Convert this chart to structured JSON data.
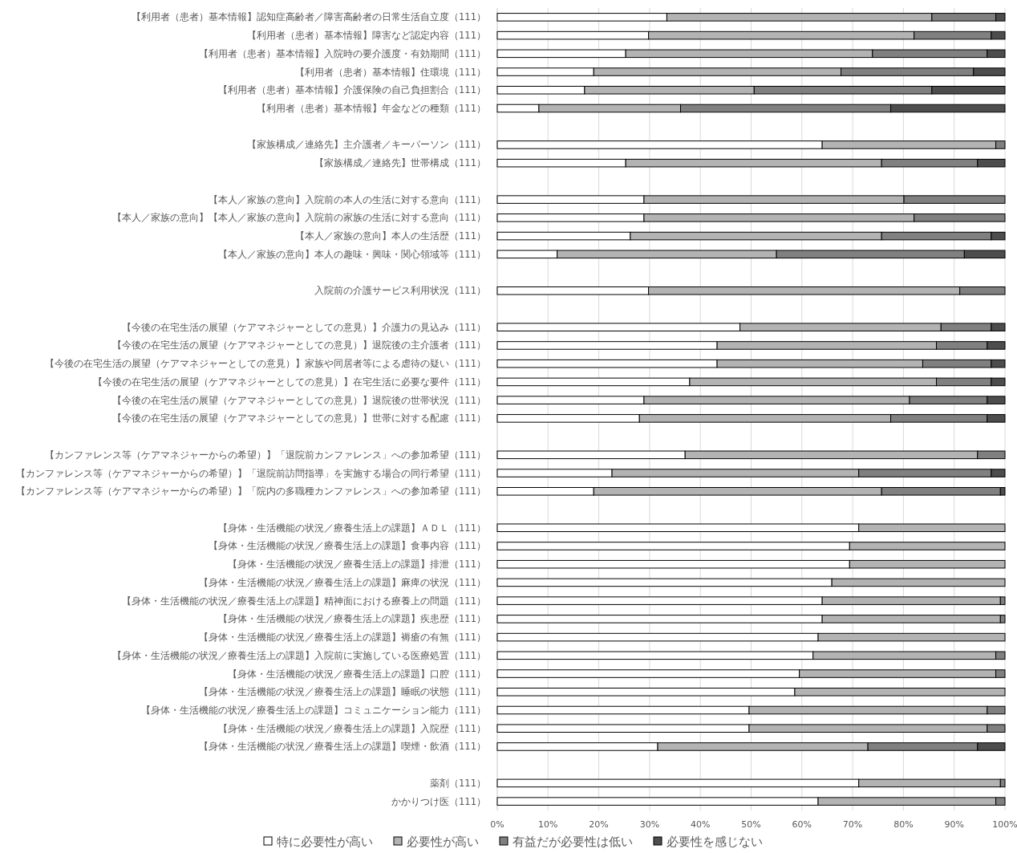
{
  "chart_data": {
    "type": "bar",
    "orientation": "horizontal",
    "stacked": true,
    "grid": "x",
    "legend": "bottom",
    "xlim": [
      0,
      100
    ],
    "xticks": [
      {
        "value": 0,
        "label": "0%"
      },
      {
        "value": 10,
        "label": "10%"
      },
      {
        "value": 20,
        "label": "20%"
      },
      {
        "value": 30,
        "label": "30%"
      },
      {
        "value": 40,
        "label": "40%"
      },
      {
        "value": 50,
        "label": "50%"
      },
      {
        "value": 60,
        "label": "60%"
      },
      {
        "value": 70,
        "label": "70%"
      },
      {
        "value": 80,
        "label": "80%"
      },
      {
        "value": 90,
        "label": "90%"
      },
      {
        "value": 100,
        "label": "100%"
      }
    ],
    "categories": [
      "【利用者（患者）基本情報】認知症高齢者／障害高齢者の日常生活自立度（111）",
      "【利用者（患者）基本情報】障害など認定内容（111）",
      "【利用者（患者）基本情報】入院時の要介護度・有効期間（111）",
      "【利用者（患者）基本情報】住環境（111）",
      "【利用者（患者）基本情報】介護保険の自己負担割合（111）",
      "【利用者（患者）基本情報】年金などの種類（111）",
      null,
      "【家族構成／連絡先】主介護者／キーパーソン（111）",
      "【家族構成／連絡先】世帯構成（111）",
      null,
      "【本人／家族の意向】入院前の本人の生活に対する意向（111）",
      "【本人／家族の意向】【本人／家族の意向】入院前の家族の生活に対する意向（111）",
      "【本人／家族の意向】本人の生活歴（111）",
      "【本人／家族の意向】本人の趣味・興味・関心領域等（111）",
      null,
      "入院前の介護サービス利用状況（111）",
      null,
      "【今後の在宅生活の展望（ケアマネジャーとしての意見）】介護力の見込み（111）",
      "【今後の在宅生活の展望（ケアマネジャーとしての意見）】退院後の主介護者（111）",
      "【今後の在宅生活の展望（ケアマネジャーとしての意見）】家族や同居者等による虐待の疑い（111）",
      "【今後の在宅生活の展望（ケアマネジャーとしての意見）】在宅生活に必要な要件（111）",
      "【今後の在宅生活の展望（ケアマネジャーとしての意見）】退院後の世帯状況（111）",
      "【今後の在宅生活の展望（ケアマネジャーとしての意見）】世帯に対する配慮（111）",
      null,
      "【カンファレンス等（ケアマネジャーからの希望）】「退院前カンファレンス」への参加希望（111）",
      "【カンファレンス等（ケアマネジャーからの希望）】「退院前訪問指導」を実施する場合の同行希望（111）",
      "【カンファレンス等（ケアマネジャーからの希望）】「院内の多職種カンファレンス」への参加希望（111）",
      null,
      "【身体・生活機能の状況／療養生活上の課題】ＡＤＬ（111）",
      "【身体・生活機能の状況／療養生活上の課題】食事内容（111）",
      "【身体・生活機能の状況／療養生活上の課題】排泄（111）",
      "【身体・生活機能の状況／療養生活上の課題】麻痺の状況（111）",
      "【身体・生活機能の状況／療養生活上の課題】精神面における療養上の問題（111）",
      "【身体・生活機能の状況／療養生活上の課題】疾患歴（111）",
      "【身体・生活機能の状況／療養生活上の課題】褥瘡の有無（111）",
      "【身体・生活機能の状況／療養生活上の課題】入院前に実施している医療処置（111）",
      "【身体・生活機能の状況／療養生活上の課題】口腔（111）",
      "【身体・生活機能の状況／療養生活上の課題】睡眠の状態（111）",
      "【身体・生活機能の状況／療養生活上の課題】コミュニケーション能力（111）",
      "【身体・生活機能の状況／療養生活上の課題】入院歴（111）",
      "【身体・生活機能の状況／療養生活上の課題】喫煙・飲酒（111）",
      null,
      "薬剤（111）",
      "かかりつけ医（111）"
    ],
    "series": [
      {
        "name": "特に必要性が高い",
        "color": "#ffffff",
        "values": [
          33.4,
          29.8,
          25.3,
          19.0,
          17.2,
          8.2,
          null,
          64.0,
          25.3,
          null,
          28.9,
          28.9,
          26.2,
          11.8,
          null,
          29.8,
          null,
          47.8,
          43.3,
          43.3,
          37.9,
          28.9,
          28.0,
          null,
          37.0,
          22.6,
          19.0,
          null,
          71.2,
          69.4,
          69.4,
          65.9,
          64.0,
          64.0,
          63.2,
          62.2,
          59.5,
          58.6,
          49.6,
          49.6,
          31.6,
          null,
          71.2,
          63.2
        ]
      },
      {
        "name": "必要性が高い",
        "color": "#b3b3b3",
        "values": [
          52.2,
          52.3,
          48.6,
          48.7,
          33.4,
          27.9,
          null,
          34.2,
          50.4,
          null,
          51.2,
          53.2,
          49.5,
          43.2,
          null,
          61.3,
          null,
          39.6,
          43.2,
          40.5,
          48.6,
          52.3,
          49.5,
          null,
          57.6,
          48.6,
          56.7,
          null,
          28.8,
          30.6,
          30.6,
          34.1,
          35.1,
          35.1,
          36.8,
          36.0,
          38.7,
          41.4,
          46.9,
          46.9,
          41.4,
          null,
          27.9,
          35.0
        ]
      },
      {
        "name": "有益だが必要性は低い",
        "color": "#808080",
        "values": [
          12.6,
          15.2,
          22.6,
          26.1,
          35.0,
          41.4,
          null,
          1.8,
          18.9,
          null,
          19.9,
          17.9,
          21.6,
          37.0,
          null,
          8.9,
          null,
          9.9,
          10.0,
          13.5,
          10.8,
          15.3,
          19.0,
          null,
          5.4,
          26.1,
          23.4,
          null,
          0,
          0,
          0,
          0,
          0.9,
          0.9,
          0,
          1.8,
          1.8,
          0,
          3.5,
          3.5,
          21.6,
          null,
          0.9,
          1.8
        ]
      },
      {
        "name": "必要性を感じない",
        "color": "#4d4d4d",
        "values": [
          1.8,
          2.7,
          3.5,
          6.2,
          14.4,
          22.5,
          null,
          0,
          5.4,
          null,
          0,
          0,
          2.7,
          8.0,
          null,
          0,
          null,
          2.7,
          3.5,
          2.7,
          2.7,
          3.5,
          3.5,
          null,
          0,
          2.7,
          0.9,
          null,
          0,
          0,
          0,
          0,
          0,
          0,
          0,
          0,
          0,
          0,
          0,
          0,
          5.4,
          null,
          0,
          0
        ]
      }
    ]
  }
}
